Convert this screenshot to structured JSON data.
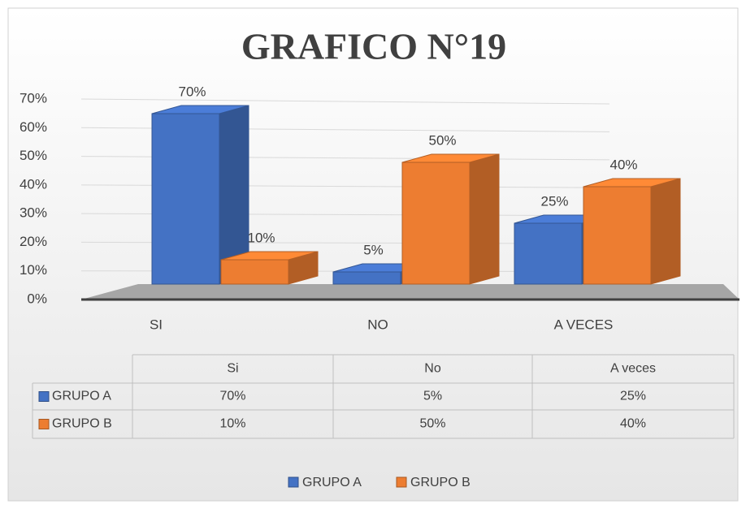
{
  "chart_data": {
    "type": "bar3d",
    "title": "GRAFICO N°19",
    "categories": [
      "SI",
      "NO",
      "A VECES"
    ],
    "table_categories": [
      "Si",
      "No",
      "A veces"
    ],
    "series": [
      {
        "name": "GRUPO A",
        "color": "#4472c4",
        "values": [
          70,
          5,
          25
        ],
        "value_labels": [
          "70%",
          "5%",
          "25%"
        ]
      },
      {
        "name": "GRUPO B",
        "color": "#ed7d31",
        "values": [
          10,
          50,
          40
        ],
        "value_labels": [
          "10%",
          "50%",
          "40%"
        ]
      }
    ],
    "ylim": [
      0,
      70
    ],
    "yticks": [
      {
        "value": 0,
        "label": "0%"
      },
      {
        "value": 10,
        "label": "10%"
      },
      {
        "value": 20,
        "label": "20%"
      },
      {
        "value": 30,
        "label": "30%"
      },
      {
        "value": 40,
        "label": "40%"
      },
      {
        "value": 50,
        "label": "50%"
      },
      {
        "value": 60,
        "label": "60%"
      },
      {
        "value": 70,
        "label": "70%"
      }
    ],
    "grid": true,
    "legend": "bottom"
  }
}
